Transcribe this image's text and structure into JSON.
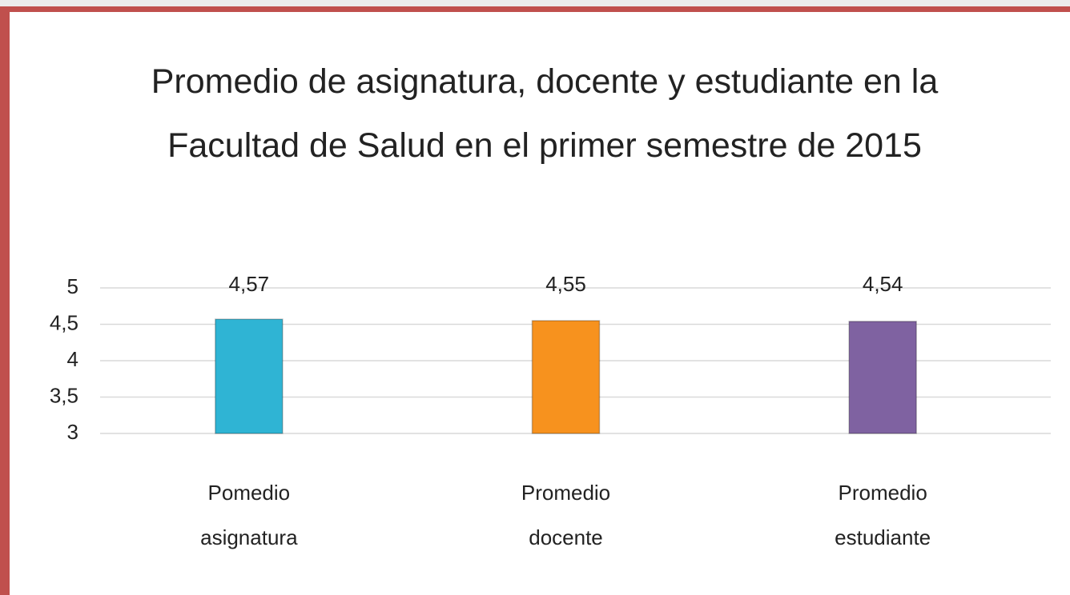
{
  "chart_data": {
    "type": "bar",
    "title": "Promedio de asignatura, docente y estudiante en la Facultad de Salud en el primer semestre de 2015",
    "categories": [
      "Pomedio asignatura",
      "Promedio docente",
      "Promedio estudiante"
    ],
    "values": [
      4.57,
      4.55,
      4.54
    ],
    "value_labels": [
      "4,57",
      "4,55",
      "4,54"
    ],
    "colors": [
      "#2fb4d4",
      "#f7921e",
      "#7f62a1"
    ],
    "ylim": [
      3,
      5
    ],
    "yticks": [
      3,
      {
        "value": 3.5,
        "label": "3,5"
      },
      4,
      {
        "value": 4.5,
        "label": "4,5"
      },
      5
    ],
    "grid": true
  }
}
